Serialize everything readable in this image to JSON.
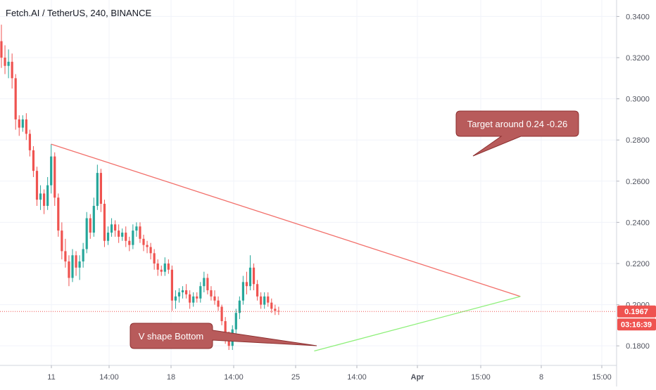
{
  "chart_data": {
    "type": "candlestick",
    "title": "Fetch.AI / TetherUS, 240, BINANCE",
    "x_ticks": [
      "11",
      "14:00",
      "18",
      "14:00",
      "25",
      "14:00",
      "Apr",
      "15:00",
      "8",
      "15:00"
    ],
    "y_ticks": [
      "0.3400",
      "0.3200",
      "0.3000",
      "0.2800",
      "0.2600",
      "0.2400",
      "0.2200",
      "0.2000",
      "0.1800"
    ],
    "ylim": [
      0.1705,
      0.348
    ],
    "grid": true,
    "last_price": "0.1967",
    "countdown": "03:16:39",
    "candles": [
      [
        0.328,
        0.336,
        0.315,
        0.32
      ],
      [
        0.32,
        0.326,
        0.312,
        0.316
      ],
      [
        0.316,
        0.324,
        0.31,
        0.318
      ],
      [
        0.318,
        0.322,
        0.305,
        0.31
      ],
      [
        0.31,
        0.312,
        0.285,
        0.29
      ],
      [
        0.29,
        0.292,
        0.282,
        0.286
      ],
      [
        0.286,
        0.292,
        0.284,
        0.29
      ],
      [
        0.29,
        0.293,
        0.28,
        0.283
      ],
      [
        0.283,
        0.285,
        0.272,
        0.275
      ],
      [
        0.275,
        0.277,
        0.262,
        0.265
      ],
      [
        0.265,
        0.267,
        0.248,
        0.251
      ],
      [
        0.251,
        0.258,
        0.246,
        0.254
      ],
      [
        0.254,
        0.256,
        0.244,
        0.248
      ],
      [
        0.248,
        0.262,
        0.246,
        0.258
      ],
      [
        0.258,
        0.278,
        0.254,
        0.272
      ],
      [
        0.272,
        0.274,
        0.248,
        0.252
      ],
      [
        0.252,
        0.254,
        0.233,
        0.236
      ],
      [
        0.236,
        0.24,
        0.222,
        0.226
      ],
      [
        0.226,
        0.232,
        0.218,
        0.221
      ],
      [
        0.221,
        0.224,
        0.209,
        0.213
      ],
      [
        0.213,
        0.227,
        0.211,
        0.224
      ],
      [
        0.224,
        0.226,
        0.214,
        0.218
      ],
      [
        0.218,
        0.224,
        0.212,
        0.221
      ],
      [
        0.221,
        0.23,
        0.218,
        0.227
      ],
      [
        0.227,
        0.245,
        0.225,
        0.242
      ],
      [
        0.242,
        0.244,
        0.232,
        0.235
      ],
      [
        0.235,
        0.252,
        0.233,
        0.248
      ],
      [
        0.248,
        0.268,
        0.246,
        0.264
      ],
      [
        0.264,
        0.266,
        0.245,
        0.249
      ],
      [
        0.249,
        0.251,
        0.228,
        0.231
      ],
      [
        0.231,
        0.238,
        0.229,
        0.235
      ],
      [
        0.235,
        0.242,
        0.233,
        0.239
      ],
      [
        0.239,
        0.241,
        0.233,
        0.236
      ],
      [
        0.236,
        0.239,
        0.23,
        0.233
      ],
      [
        0.233,
        0.237,
        0.231,
        0.235
      ],
      [
        0.235,
        0.238,
        0.228,
        0.231
      ],
      [
        0.231,
        0.233,
        0.226,
        0.229
      ],
      [
        0.229,
        0.239,
        0.227,
        0.236
      ],
      [
        0.236,
        0.24,
        0.233,
        0.238
      ],
      [
        0.238,
        0.24,
        0.23,
        0.232
      ],
      [
        0.232,
        0.234,
        0.226,
        0.229
      ],
      [
        0.229,
        0.231,
        0.225,
        0.228
      ],
      [
        0.228,
        0.23,
        0.222,
        0.225
      ],
      [
        0.225,
        0.227,
        0.217,
        0.22
      ],
      [
        0.22,
        0.222,
        0.214,
        0.217
      ],
      [
        0.217,
        0.219,
        0.214,
        0.216
      ],
      [
        0.216,
        0.223,
        0.214,
        0.22
      ],
      [
        0.22,
        0.222,
        0.215,
        0.217
      ],
      [
        0.217,
        0.219,
        0.197,
        0.202
      ],
      [
        0.202,
        0.207,
        0.198,
        0.204
      ],
      [
        0.204,
        0.208,
        0.201,
        0.206
      ],
      [
        0.206,
        0.209,
        0.203,
        0.207
      ],
      [
        0.207,
        0.21,
        0.203,
        0.205
      ],
      [
        0.205,
        0.207,
        0.198,
        0.201
      ],
      [
        0.201,
        0.206,
        0.199,
        0.204
      ],
      [
        0.204,
        0.206,
        0.201,
        0.203
      ],
      [
        0.203,
        0.211,
        0.201,
        0.209
      ],
      [
        0.209,
        0.216,
        0.206,
        0.213
      ],
      [
        0.213,
        0.215,
        0.205,
        0.207
      ],
      [
        0.207,
        0.209,
        0.202,
        0.204
      ],
      [
        0.204,
        0.207,
        0.2,
        0.202
      ],
      [
        0.202,
        0.204,
        0.197,
        0.199
      ],
      [
        0.199,
        0.2,
        0.19,
        0.192
      ],
      [
        0.192,
        0.194,
        0.181,
        0.184
      ],
      [
        0.184,
        0.187,
        0.178,
        0.18
      ],
      [
        0.18,
        0.19,
        0.178,
        0.188
      ],
      [
        0.188,
        0.198,
        0.186,
        0.196
      ],
      [
        0.196,
        0.204,
        0.193,
        0.202
      ],
      [
        0.202,
        0.214,
        0.2,
        0.211
      ],
      [
        0.211,
        0.216,
        0.205,
        0.209
      ],
      [
        0.209,
        0.224,
        0.207,
        0.218
      ],
      [
        0.218,
        0.22,
        0.207,
        0.21
      ],
      [
        0.21,
        0.212,
        0.202,
        0.204
      ],
      [
        0.204,
        0.206,
        0.198,
        0.2
      ],
      [
        0.2,
        0.206,
        0.198,
        0.204
      ],
      [
        0.204,
        0.206,
        0.199,
        0.201
      ],
      [
        0.201,
        0.203,
        0.196,
        0.198
      ],
      [
        0.198,
        0.2,
        0.195,
        0.197
      ],
      [
        0.197,
        0.199,
        0.195,
        0.1967
      ]
    ],
    "trendlines": {
      "resistance": {
        "from": {
          "index": 14,
          "price": 0.278
        },
        "to": {
          "index": 146,
          "price": 0.204
        }
      },
      "support": {
        "from": {
          "index": 88,
          "price": 0.1775
        },
        "to": {
          "index": 146,
          "price": 0.204
        }
      }
    },
    "annotations": [
      {
        "text": "Target around 0.24 -0.26"
      },
      {
        "text": "V shape Bottom"
      }
    ],
    "colors": {
      "up": "#26a69a",
      "down": "#ef5350",
      "resistance": "#f2706b",
      "support": "#8ef07a",
      "callout_fill": "#b85b5b",
      "callout_border": "#8c2f2f",
      "price_tag": "#ef5350",
      "grid": "#f0f3fa"
    }
  }
}
